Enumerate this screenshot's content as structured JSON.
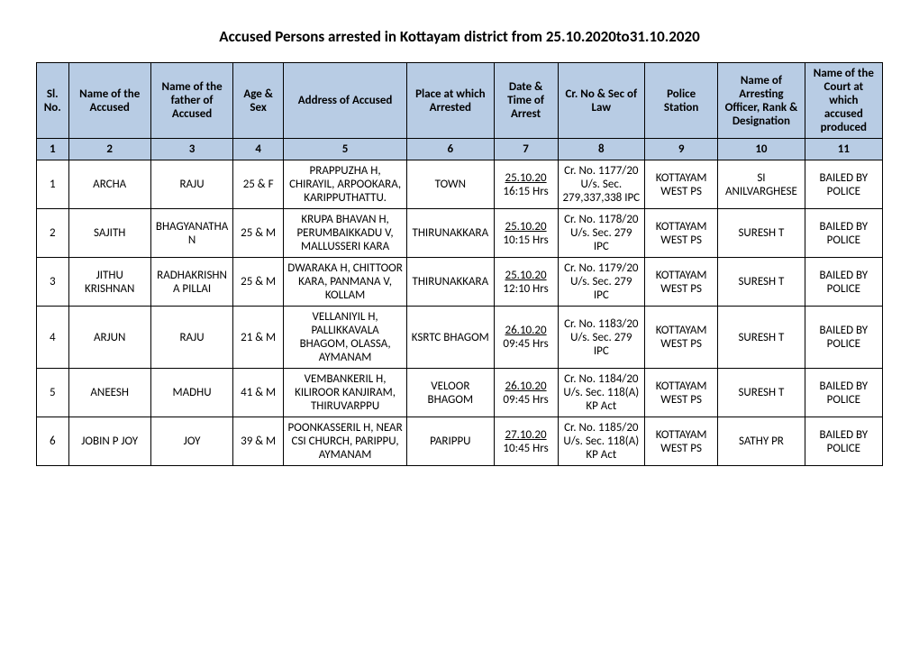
{
  "title": "Accused Persons arrested in   Kottayam  district from  25.10.2020to31.10.2020",
  "headers": [
    "Sl. No.",
    "Name of the Accused",
    "Name of the father of Accused",
    "Age & Sex",
    "Address of Accused",
    "Place at which Arrested",
    "Date & Time of Arrest",
    "Cr. No & Sec of Law",
    "Police Station",
    "Name of Arresting Officer, Rank & Designation",
    "Name of the Court at which accused produced"
  ],
  "numrow": [
    "1",
    "2",
    "3",
    "4",
    "5",
    "6",
    "7",
    "8",
    "9",
    "10",
    "11"
  ],
  "rows": [
    {
      "sl": "1",
      "name": "ARCHA",
      "father": "RAJU",
      "agesex": "25 & F",
      "address": "PRAPPUZHA H, CHIRAYIL, ARPOOKARA, KARIPPUTHATTU.",
      "place": "TOWN",
      "date": "25.10.20",
      "time": "16:15  Hrs",
      "crno": "Cr. No. 1177/20  U/s. Sec. 279,337,338 IPC",
      "station": "KOTTAYAM WEST PS",
      "officer": "SI ANILVARGHESE",
      "court": "BAILED BY POLICE"
    },
    {
      "sl": "2",
      "name": "SAJITH",
      "father": "BHAGYANATHAN",
      "agesex": "25 & M",
      "address": "KRUPA BHAVAN H, PERUMBAIKKADU V, MALLUSSERI KARA",
      "place": "THIRUNAKKARA",
      "date": "25.10.20",
      "time": "10:15  Hrs",
      "crno": "Cr. No. 1178/20  U/s. Sec. 279 IPC",
      "station": "KOTTAYAM WEST PS",
      "officer": "SURESH T",
      "court": "BAILED BY POLICE"
    },
    {
      "sl": "3",
      "name": "JITHU KRISHNAN",
      "father": "RADHAKRISHNA PILLAI",
      "agesex": "25 & M",
      "address": "DWARAKA H, CHITTOOR KARA, PANMANA V, KOLLAM",
      "place": "THIRUNAKKARA",
      "date": "25.10.20",
      "time": "12:10  Hrs",
      "crno": "Cr. No. 1179/20  U/s. Sec. 279 IPC",
      "station": "KOTTAYAM WEST PS",
      "officer": "SURESH T",
      "court": "BAILED BY POLICE"
    },
    {
      "sl": "4",
      "name": "ARJUN",
      "father": "RAJU",
      "agesex": "21 & M",
      "address": "VELLANIYIL H, PALLIKKAVALA BHAGOM, OLASSA, AYMANAM",
      "place": "KSRTC BHAGOM",
      "date": "26.10.20",
      "time": "09:45  Hrs",
      "crno": "Cr. No. 1183/20  U/s. Sec. 279 IPC",
      "station": "KOTTAYAM WEST PS",
      "officer": "SURESH T",
      "court": "BAILED BY POLICE"
    },
    {
      "sl": "5",
      "name": "ANEESH",
      "father": "MADHU",
      "agesex": "41 & M",
      "address": "VEMBANKERIL H, KILIROOR KANJIRAM, THIRUVARPPU",
      "place": "VELOOR BHAGOM",
      "date": "26.10.20",
      "time": "09:45  Hrs",
      "crno": "Cr. No. 1184/20  U/s. Sec. 118(A) KP Act",
      "station": "KOTTAYAM WEST PS",
      "officer": "SURESH T",
      "court": "BAILED BY POLICE"
    },
    {
      "sl": "6",
      "name": "JOBIN P JOY",
      "father": "JOY",
      "agesex": "39 & M",
      "address": "POONKASSERIL H, NEAR CSI CHURCH, PARIPPU, AYMANAM",
      "place": "PARIPPU",
      "date": "27.10.20",
      "time": "10:45  Hrs",
      "crno": "Cr. No. 1185/20  U/s. Sec. 118(A) KP Act",
      "station": "KOTTAYAM WEST PS",
      "officer": "SATHY PR",
      "court": "BAILED BY POLICE"
    }
  ]
}
